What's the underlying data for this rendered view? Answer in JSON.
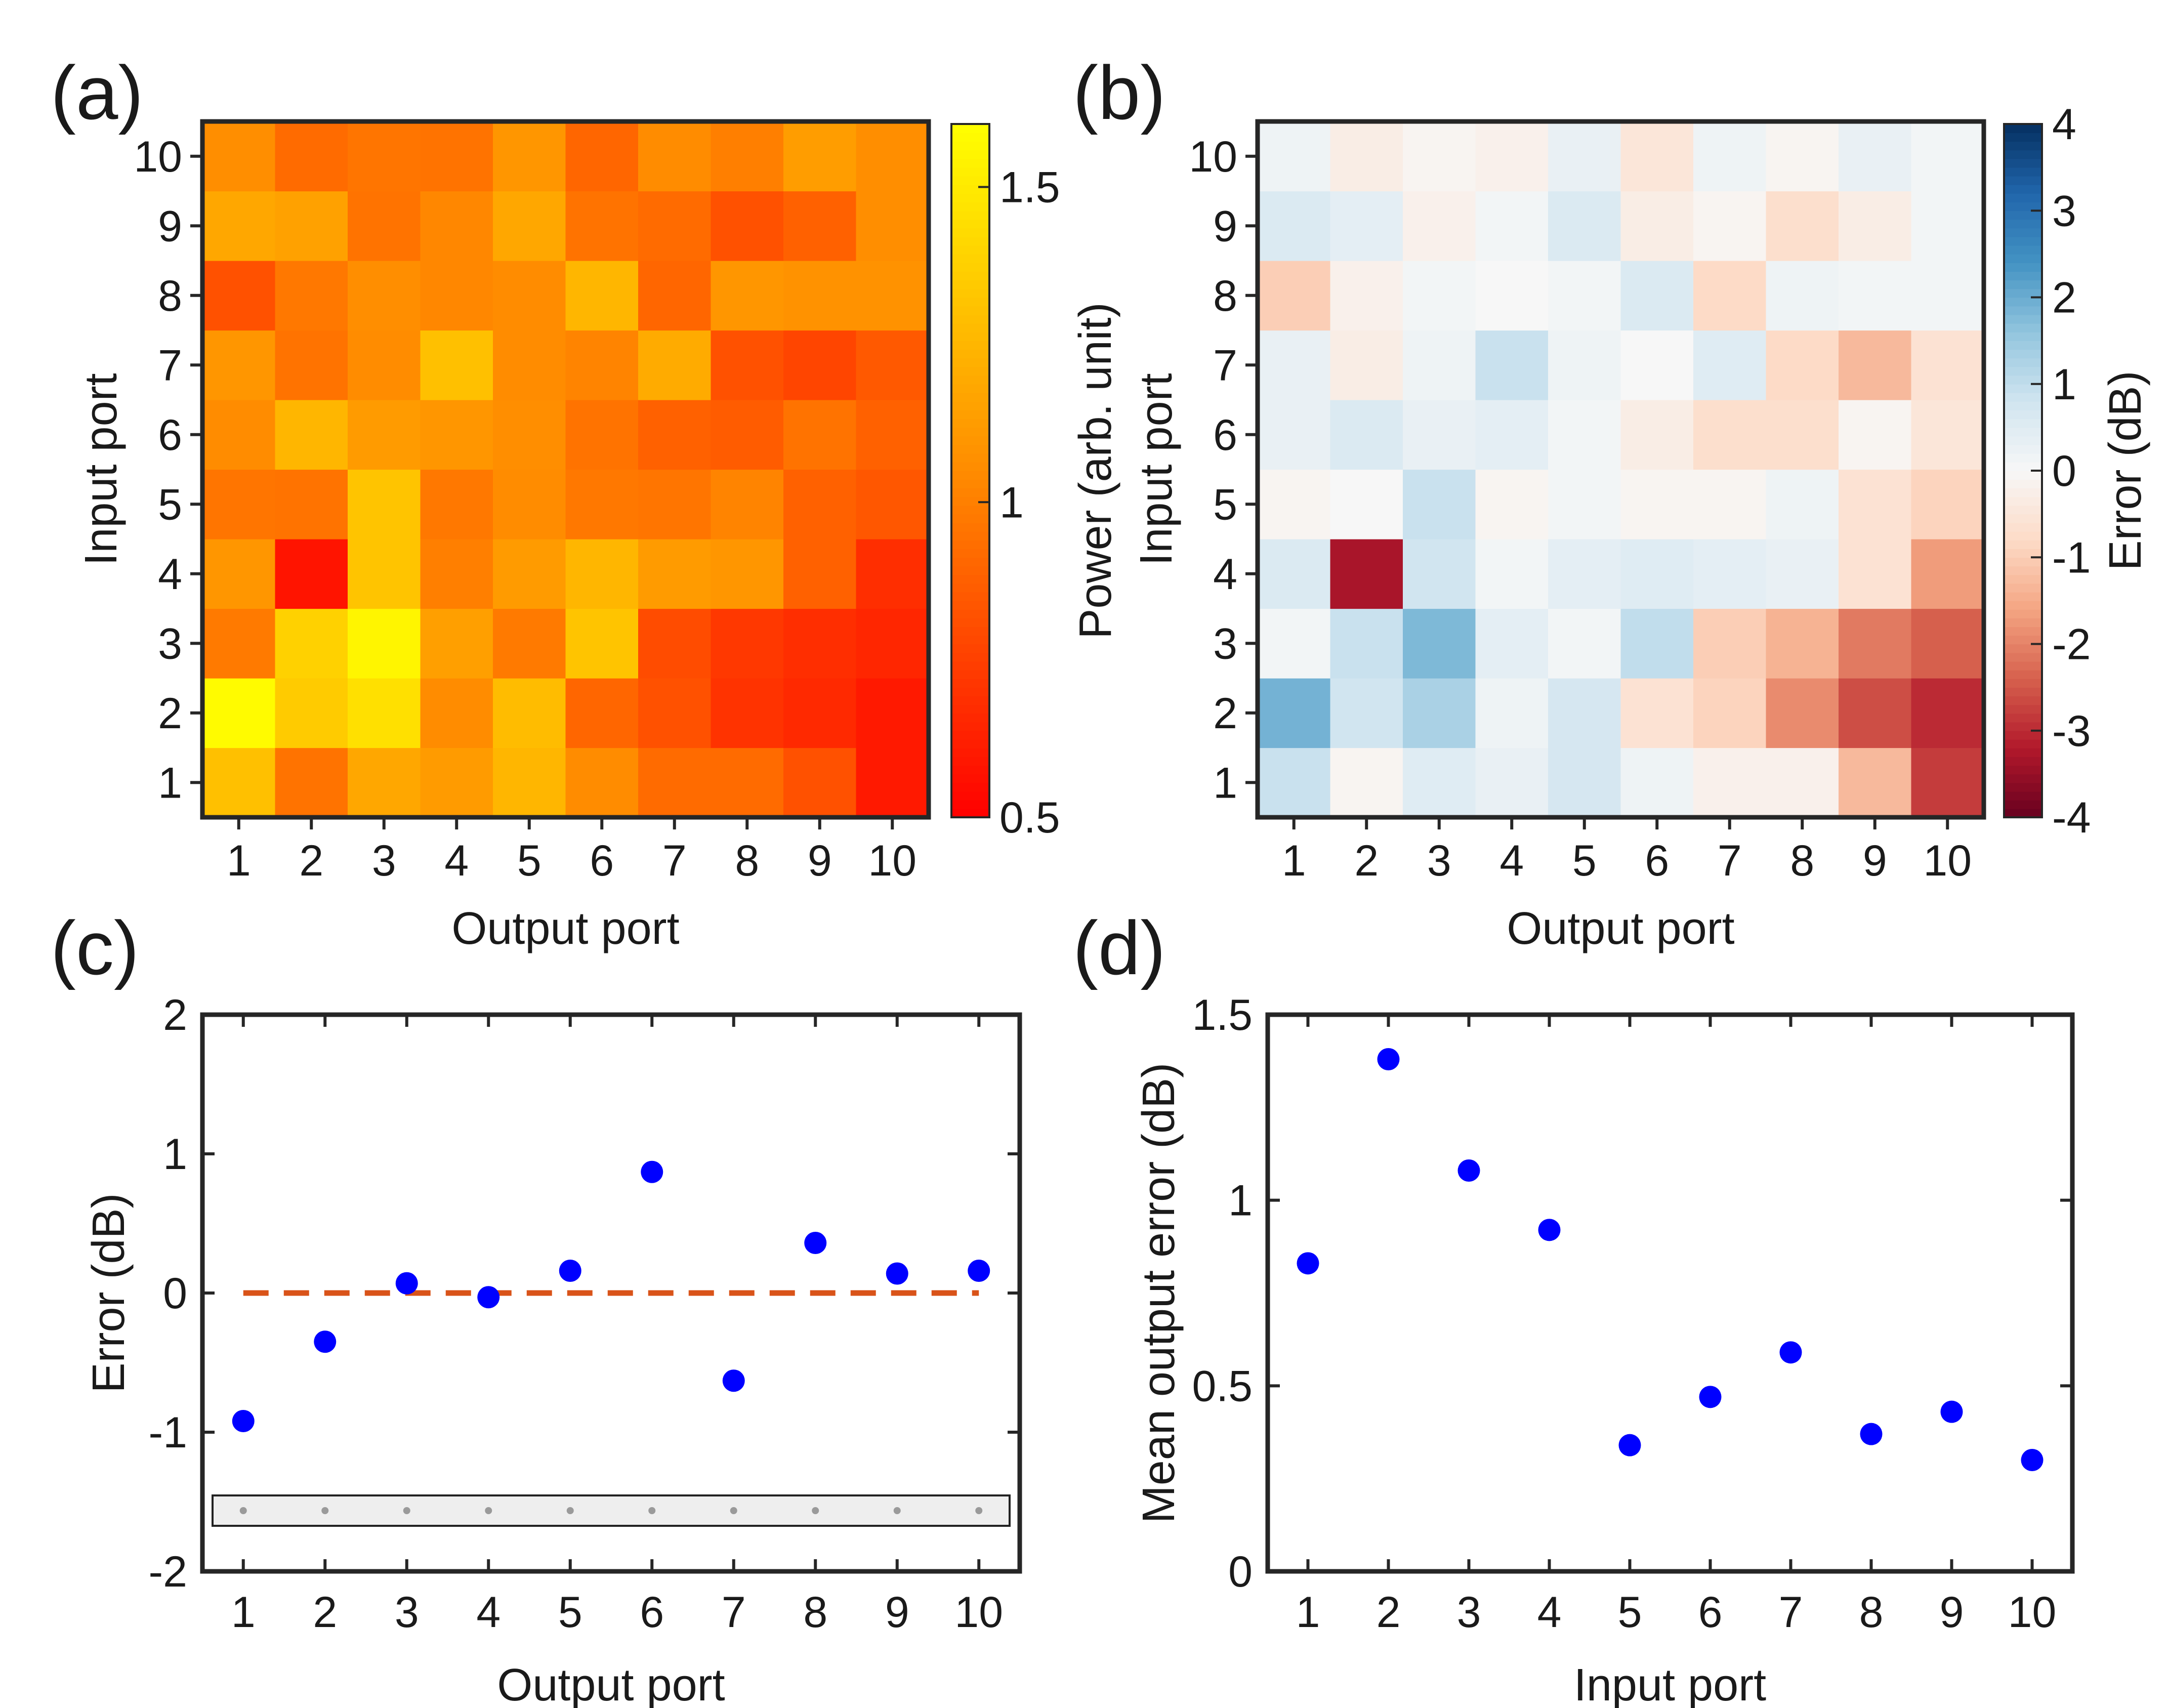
{
  "chart_data": [
    {
      "panel": "(a)",
      "type": "heatmap",
      "xlabel": "Output port",
      "ylabel": "Input port",
      "x_ticks": [
        "1",
        "2",
        "3",
        "4",
        "5",
        "6",
        "7",
        "8",
        "9",
        "10"
      ],
      "y_ticks": [
        "1",
        "2",
        "3",
        "4",
        "5",
        "6",
        "7",
        "8",
        "9",
        "10"
      ],
      "colorbar": {
        "label": "Power (arb. unit)",
        "range": [
          0.5,
          1.6
        ],
        "ticks": [
          "0.5",
          "1",
          "1.5"
        ],
        "tick_values": [
          0.5,
          1.0,
          1.5
        ],
        "colormap": [
          "#ff0000",
          "#ff8c00",
          "#ffff00"
        ]
      },
      "rows_input_1_to_10": [
        [
          1.3,
          0.95,
          1.18,
          1.12,
          1.25,
          1.05,
          0.92,
          0.92,
          0.82,
          0.6
        ],
        [
          1.58,
          1.35,
          1.45,
          1.05,
          1.28,
          0.9,
          0.82,
          0.7,
          0.66,
          0.6
        ],
        [
          0.98,
          1.38,
          1.55,
          1.14,
          0.98,
          1.32,
          0.8,
          0.72,
          0.68,
          0.65
        ],
        [
          1.1,
          0.58,
          1.32,
          1.0,
          1.12,
          1.25,
          1.12,
          1.1,
          0.88,
          0.68
        ],
        [
          0.96,
          0.95,
          1.32,
          0.97,
          1.05,
          0.97,
          0.96,
          1.02,
          0.88,
          0.84
        ],
        [
          1.05,
          1.25,
          1.12,
          1.1,
          1.06,
          0.95,
          0.88,
          0.86,
          0.95,
          0.88
        ],
        [
          1.1,
          0.95,
          1.05,
          1.3,
          1.05,
          1.02,
          1.2,
          0.82,
          0.77,
          0.85
        ],
        [
          0.82,
          0.97,
          1.06,
          1.03,
          1.05,
          1.25,
          0.9,
          1.1,
          1.08,
          1.08
        ],
        [
          1.18,
          1.15,
          0.95,
          1.03,
          1.18,
          0.95,
          0.92,
          0.82,
          0.88,
          1.06
        ],
        [
          1.06,
          0.92,
          0.96,
          0.95,
          1.1,
          0.9,
          1.05,
          1.0,
          1.13,
          1.06
        ]
      ]
    },
    {
      "panel": "(b)",
      "type": "heatmap",
      "xlabel": "Output port",
      "ylabel": "Input port",
      "x_ticks": [
        "1",
        "2",
        "3",
        "4",
        "5",
        "6",
        "7",
        "8",
        "9",
        "10"
      ],
      "y_ticks": [
        "1",
        "2",
        "3",
        "4",
        "5",
        "6",
        "7",
        "8",
        "9",
        "10"
      ],
      "colorbar": {
        "label": "Error (dB)",
        "range": [
          -4,
          4
        ],
        "ticks": [
          "-4",
          "-3",
          "-2",
          "-1",
          "0",
          "1",
          "2",
          "3",
          "4"
        ],
        "tick_values": [
          -4,
          -3,
          -2,
          -1,
          0,
          1,
          2,
          3,
          4
        ],
        "colormap": [
          "#67001f",
          "#b2182b",
          "#d6604d",
          "#f4a582",
          "#fddbc7",
          "#f7f7f7",
          "#d1e5f0",
          "#92c5de",
          "#4393c3",
          "#2166ac",
          "#053061"
        ]
      },
      "rows_input_1_to_10": [
        [
          0.9,
          -0.1,
          0.5,
          0.3,
          0.7,
          0.2,
          -0.2,
          -0.2,
          -1.3,
          -2.8
        ],
        [
          1.9,
          0.8,
          1.3,
          0.2,
          0.7,
          -0.6,
          -0.9,
          -1.9,
          -2.6,
          -3.0
        ],
        [
          0.1,
          0.9,
          1.8,
          0.4,
          0.1,
          1.0,
          -1.0,
          -1.4,
          -2.1,
          -2.4
        ],
        [
          0.6,
          -3.3,
          0.8,
          0.1,
          0.4,
          0.5,
          0.4,
          0.3,
          -0.6,
          -1.7
        ],
        [
          -0.1,
          0.0,
          0.9,
          -0.1,
          0.1,
          -0.1,
          -0.1,
          0.2,
          -0.6,
          -0.9
        ],
        [
          0.3,
          0.6,
          0.3,
          0.4,
          0.1,
          -0.3,
          -0.7,
          -0.7,
          -0.1,
          -0.5
        ],
        [
          0.3,
          -0.3,
          0.2,
          0.9,
          0.2,
          0.0,
          0.5,
          -0.8,
          -1.3,
          -0.6
        ],
        [
          -1.0,
          -0.2,
          0.1,
          0.0,
          0.1,
          0.6,
          -0.8,
          0.2,
          0.1,
          0.1
        ],
        [
          0.6,
          0.4,
          -0.2,
          0.1,
          0.6,
          -0.3,
          -0.1,
          -0.7,
          -0.3,
          0.1
        ],
        [
          0.2,
          -0.3,
          -0.1,
          -0.2,
          0.3,
          -0.5,
          0.2,
          -0.1,
          0.3,
          0.1
        ]
      ]
    },
    {
      "panel": "(c)",
      "type": "scatter",
      "xlabel": "Output port",
      "ylabel": "Error (dB)",
      "x": [
        1,
        2,
        3,
        4,
        5,
        6,
        7,
        8,
        9,
        10
      ],
      "y": [
        -0.92,
        -0.35,
        0.07,
        -0.03,
        0.16,
        0.87,
        -0.63,
        0.36,
        0.14,
        0.16
      ],
      "xlim": [
        0.5,
        10.5
      ],
      "ylim": [
        -2,
        2
      ],
      "x_ticks": [
        "1",
        "2",
        "3",
        "4",
        "5",
        "6",
        "7",
        "8",
        "9",
        "10"
      ],
      "y_ticks": [
        "-2",
        "-1",
        "0",
        "1",
        "2"
      ],
      "y_tick_values": [
        -2,
        -1,
        0,
        1,
        2
      ],
      "reference_line": {
        "y": 0,
        "style": "dashed",
        "color": "#d95319"
      },
      "marker_color": "#0000ff",
      "inset_strip_dots": 10
    },
    {
      "panel": "(d)",
      "type": "scatter",
      "xlabel": "Input port",
      "ylabel": "Mean output error (dB)",
      "x": [
        1,
        2,
        3,
        4,
        5,
        6,
        7,
        8,
        9,
        10
      ],
      "y": [
        0.83,
        1.38,
        1.08,
        0.92,
        0.34,
        0.47,
        0.59,
        0.37,
        0.43,
        0.3
      ],
      "xlim": [
        0.5,
        10.5
      ],
      "ylim": [
        0,
        1.5
      ],
      "x_ticks": [
        "1",
        "2",
        "3",
        "4",
        "5",
        "6",
        "7",
        "8",
        "9",
        "10"
      ],
      "y_ticks": [
        "0",
        "0.5",
        "1",
        "1.5"
      ],
      "y_tick_values": [
        0,
        0.5,
        1,
        1.5
      ],
      "marker_color": "#0000ff"
    }
  ]
}
